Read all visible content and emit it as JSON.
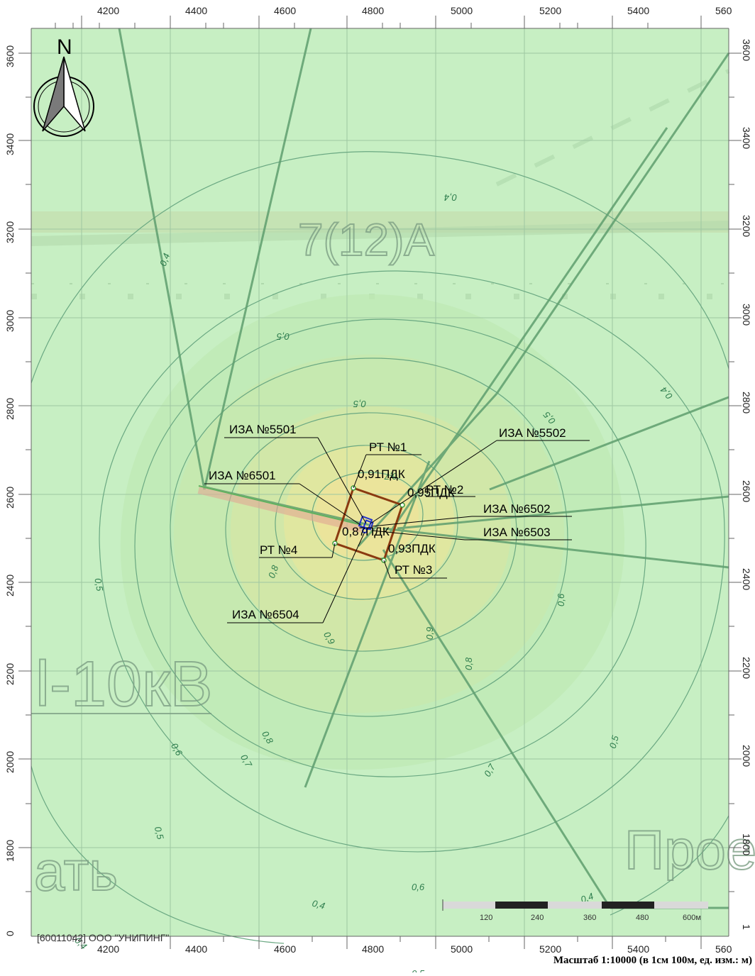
{
  "map": {
    "scale_caption": "Масштаб 1:10000 (в 1см 100м, ед. изм.: м)",
    "company": "[60011042] ООО \"УНИПИНГ\"",
    "north_label": "N",
    "x_ticks": [
      "4200",
      "4400",
      "4600",
      "4800",
      "5000",
      "5200",
      "5400",
      "560"
    ],
    "y_ticks": [
      "3600",
      "3400",
      "3200",
      "3000",
      "2800",
      "2600",
      "2400",
      "2200",
      "2000",
      "1800"
    ],
    "scale_bar": [
      "120",
      "240",
      "360",
      "480",
      "600м"
    ],
    "background_words": [
      "7(12)A",
      "l-10кВ",
      "ать",
      "Прое"
    ],
    "corner_left": "0",
    "corner_right": "1",
    "sources": [
      {
        "label": "ИЗА №5501"
      },
      {
        "label": "ИЗА №6501"
      },
      {
        "label": "ИЗА №5502"
      },
      {
        "label": "ИЗА №6502"
      },
      {
        "label": "ИЗА №6503"
      },
      {
        "label": "ИЗА №6504"
      }
    ],
    "points": [
      {
        "label": "РТ №1",
        "value": "0,91ПДК"
      },
      {
        "label": "РТ №2",
        "value": "0,95ПДК"
      },
      {
        "label": "РТ №3",
        "value": "0,93ПДК"
      },
      {
        "label": "РТ №4",
        "value": "0,87ПДК"
      }
    ],
    "isolines": [
      "0,4",
      "0,5",
      "0,6",
      "0,7",
      "0,8",
      "0,9"
    ],
    "colors": {
      "background": "#c8f0c4",
      "inner_fill": "#e3ecae",
      "contour": "#6aa882",
      "site": "#8a3a10",
      "source": "#2233cc"
    }
  }
}
